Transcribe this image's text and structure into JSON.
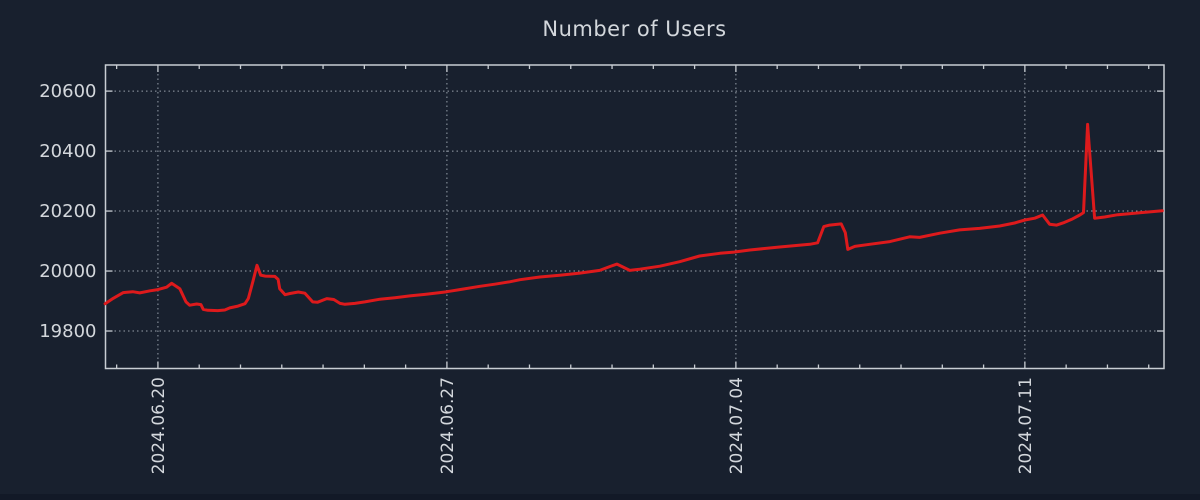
{
  "title": "Number of Users",
  "colors": {
    "background": "#18202e",
    "frame": "#c8cdd3",
    "grid": "#97a0aa",
    "text": "#d3d7dc",
    "line": "#dd1a1c"
  },
  "chart_data": {
    "type": "line",
    "title": "Number of Users",
    "xlabel": "",
    "ylabel": "",
    "grid": true,
    "legend": "none",
    "x_unit": "days relative to 2024.06.20",
    "xlim": [
      -1.27,
      24.37
    ],
    "ylim": [
      19675,
      20687
    ],
    "yticks": [
      19800,
      20000,
      20200,
      20400,
      20600
    ],
    "xticks": [
      {
        "day": 0,
        "label": "2024.06.20"
      },
      {
        "day": 7,
        "label": "2024.06.27"
      },
      {
        "day": 14,
        "label": "2024.07.04"
      },
      {
        "day": 21,
        "label": "2024.07.11"
      }
    ],
    "minor_xtick_interval_days": 1,
    "series": [
      {
        "name": "users",
        "color": "#dd1a1c",
        "points": [
          [
            -1.28,
            19891
          ],
          [
            -1.08,
            19909
          ],
          [
            -0.84,
            19928
          ],
          [
            -0.61,
            19931
          ],
          [
            -0.44,
            19927
          ],
          [
            -0.19,
            19934
          ],
          [
            0.0,
            19938
          ],
          [
            0.21,
            19946
          ],
          [
            0.33,
            19959
          ],
          [
            0.53,
            19941
          ],
          [
            0.68,
            19897
          ],
          [
            0.77,
            19886
          ],
          [
            0.94,
            19890
          ],
          [
            1.04,
            19888
          ],
          [
            1.1,
            19872
          ],
          [
            1.21,
            19869
          ],
          [
            1.45,
            19868
          ],
          [
            1.62,
            19870
          ],
          [
            1.74,
            19877
          ],
          [
            1.94,
            19883
          ],
          [
            2.11,
            19891
          ],
          [
            2.19,
            19908
          ],
          [
            2.3,
            19965
          ],
          [
            2.4,
            20019
          ],
          [
            2.49,
            19986
          ],
          [
            2.6,
            19983
          ],
          [
            2.83,
            19982
          ],
          [
            2.91,
            19972
          ],
          [
            2.95,
            19941
          ],
          [
            3.08,
            19921
          ],
          [
            3.2,
            19925
          ],
          [
            3.4,
            19930
          ],
          [
            3.56,
            19926
          ],
          [
            3.75,
            19897
          ],
          [
            3.87,
            19896
          ],
          [
            4.09,
            19908
          ],
          [
            4.26,
            19905
          ],
          [
            4.41,
            19892
          ],
          [
            4.53,
            19889
          ],
          [
            4.77,
            19892
          ],
          [
            5.01,
            19897
          ],
          [
            5.38,
            19906
          ],
          [
            5.74,
            19911
          ],
          [
            6.1,
            19917
          ],
          [
            6.47,
            19922
          ],
          [
            6.83,
            19928
          ],
          [
            7.0,
            19931
          ],
          [
            7.31,
            19938
          ],
          [
            7.8,
            19949
          ],
          [
            8.16,
            19956
          ],
          [
            8.52,
            19964
          ],
          [
            8.77,
            19971
          ],
          [
            9.25,
            19980
          ],
          [
            9.73,
            19986
          ],
          [
            10.22,
            19993
          ],
          [
            10.7,
            20002
          ],
          [
            10.95,
            20015
          ],
          [
            11.12,
            20023
          ],
          [
            11.43,
            20002
          ],
          [
            11.67,
            20006
          ],
          [
            12.16,
            20016
          ],
          [
            12.64,
            20031
          ],
          [
            13.12,
            20050
          ],
          [
            13.61,
            20059
          ],
          [
            13.95,
            20063
          ],
          [
            14.34,
            20070
          ],
          [
            15.06,
            20080
          ],
          [
            15.79,
            20089
          ],
          [
            15.98,
            20094
          ],
          [
            16.13,
            20148
          ],
          [
            16.27,
            20153
          ],
          [
            16.55,
            20157
          ],
          [
            16.65,
            20128
          ],
          [
            16.71,
            20072
          ],
          [
            16.88,
            20082
          ],
          [
            17.24,
            20089
          ],
          [
            17.73,
            20098
          ],
          [
            18.21,
            20114
          ],
          [
            18.45,
            20112
          ],
          [
            18.94,
            20126
          ],
          [
            19.42,
            20137
          ],
          [
            19.9,
            20142
          ],
          [
            20.39,
            20150
          ],
          [
            20.75,
            20160
          ],
          [
            21.0,
            20170
          ],
          [
            21.24,
            20176
          ],
          [
            21.43,
            20187
          ],
          [
            21.6,
            20156
          ],
          [
            21.77,
            20153
          ],
          [
            21.96,
            20162
          ],
          [
            22.13,
            20172
          ],
          [
            22.33,
            20187
          ],
          [
            22.42,
            20195
          ],
          [
            22.52,
            20489
          ],
          [
            22.69,
            20176
          ],
          [
            22.93,
            20180
          ],
          [
            23.25,
            20188
          ],
          [
            23.59,
            20192
          ],
          [
            23.92,
            20196
          ],
          [
            24.33,
            20201
          ]
        ]
      }
    ]
  }
}
